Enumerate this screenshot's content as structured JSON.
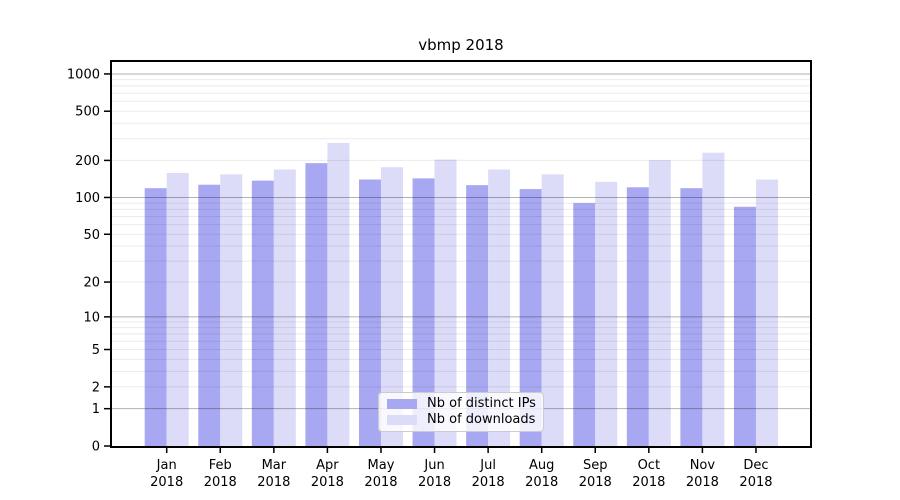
{
  "title": "vbmp 2018",
  "legend": {
    "items": [
      {
        "label": "Nb of distinct IPs",
        "color": "#a8a8f2"
      },
      {
        "label": "Nb of downloads",
        "color": "#dcdcf8"
      }
    ]
  },
  "chart_data": {
    "type": "bar",
    "title": "vbmp 2018",
    "categories": [
      "Jan",
      "Feb",
      "Mar",
      "Apr",
      "May",
      "Jun",
      "Jul",
      "Aug",
      "Sep",
      "Oct",
      "Nov",
      "Dec"
    ],
    "year_label": "2018",
    "series": [
      {
        "name": "Nb of distinct IPs",
        "color": "#a8a8f2",
        "values": [
          119,
          127,
          137,
          190,
          140,
          143,
          126,
          117,
          90,
          121,
          119,
          84
        ]
      },
      {
        "name": "Nb of downloads",
        "color": "#dcdcf8",
        "values": [
          158,
          154,
          169,
          277,
          176,
          203,
          169,
          154,
          134,
          201,
          231,
          140
        ]
      }
    ],
    "xlabel": "",
    "ylabel": "",
    "yscale": "log1p",
    "yticks": [
      1000,
      500,
      200,
      100,
      50,
      20,
      10,
      5,
      2,
      1,
      0
    ],
    "ylim": [
      0,
      1250
    ],
    "grid": "both",
    "legend_position": "lower center"
  },
  "colors": {
    "bar_distinct_ips": "#a8a8f2",
    "bar_downloads": "#dcdcf8",
    "grid_major": "rgba(0,0,0,0.30)",
    "grid_minor": "rgba(0,0,0,0.08)",
    "axis": "#000000",
    "background": "#ffffff"
  }
}
